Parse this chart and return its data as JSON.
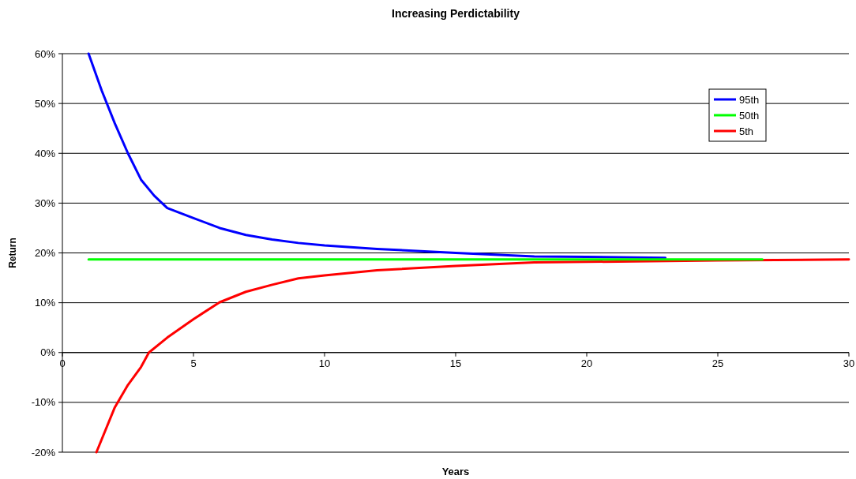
{
  "chart_data": {
    "type": "line",
    "title": "Increasing Perdictability",
    "xlabel": "Years",
    "ylabel": "Return",
    "xlim": [
      0,
      30
    ],
    "xticks": [
      0,
      5,
      10,
      15,
      20,
      25,
      30
    ],
    "ylim": [
      -20,
      60
    ],
    "yticks": [
      {
        "value": -20,
        "label": "-20%"
      },
      {
        "value": -10,
        "label": "-10%"
      },
      {
        "value": 0,
        "label": "0%"
      },
      {
        "value": 10,
        "label": "10%"
      },
      {
        "value": 20,
        "label": "20%"
      },
      {
        "value": 30,
        "label": "30%"
      },
      {
        "value": 40,
        "label": "40%"
      },
      {
        "value": 50,
        "label": "50%"
      },
      {
        "value": 60,
        "label": "60%"
      }
    ],
    "grid": "y",
    "legend": "top right",
    "marker": "none",
    "line_style": "solid",
    "series": [
      {
        "name": "95th",
        "color": "#0000ff",
        "x": [
          1,
          1.5,
          2,
          2.5,
          3,
          3.5,
          4,
          5,
          6,
          7,
          8,
          9,
          10,
          12,
          15,
          18,
          20,
          23
        ],
        "values": [
          60,
          52.6,
          46,
          40,
          34.7,
          31.5,
          29,
          27,
          25,
          23.6,
          22.7,
          22,
          21.5,
          20.8,
          20,
          19.3,
          19.2,
          19
        ]
      },
      {
        "name": "50th",
        "color": "#00ff00",
        "x": [
          1,
          26.7
        ],
        "values": [
          18.7,
          18.7
        ]
      },
      {
        "name": "5th",
        "color": "#ff0000",
        "x": [
          1.3,
          2,
          2.5,
          3,
          3.3,
          4,
          5,
          6,
          7,
          8,
          9,
          10,
          12,
          15,
          18,
          20,
          25,
          30
        ],
        "values": [
          -20,
          -11,
          -6.5,
          -2.9,
          0,
          3,
          6.7,
          10.1,
          12.2,
          13.6,
          14.9,
          15.5,
          16.5,
          17.4,
          18.1,
          18.2,
          18.5,
          18.7
        ]
      }
    ]
  }
}
